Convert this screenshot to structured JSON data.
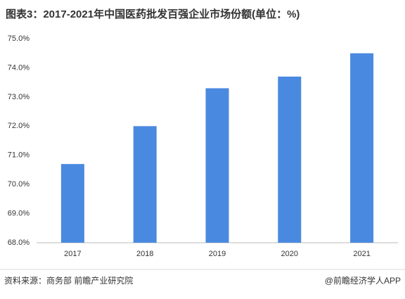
{
  "chart_data": {
    "type": "bar",
    "title": "图表3：2017-2021年中国医药批发百强企业市场份额(单位：%)",
    "categories": [
      "2017",
      "2018",
      "2019",
      "2020",
      "2021"
    ],
    "values": [
      70.7,
      72.0,
      73.3,
      73.7,
      74.5
    ],
    "color": "#4a89e0",
    "ylim": [
      68,
      75
    ],
    "yticks": [
      {
        "value": 68,
        "label": "68.0%"
      },
      {
        "value": 69,
        "label": "69.0%"
      },
      {
        "value": 70,
        "label": "70.0%"
      },
      {
        "value": 71,
        "label": "71.0%"
      },
      {
        "value": 72,
        "label": "72.0%"
      },
      {
        "value": 73,
        "label": "73.0%"
      },
      {
        "value": 74,
        "label": "74.0%"
      },
      {
        "value": 75,
        "label": "75.0%"
      }
    ],
    "grid": false,
    "source": "资料来源：商务部 前瞻产业研究院",
    "credit": "@前瞻经济学人APP"
  }
}
